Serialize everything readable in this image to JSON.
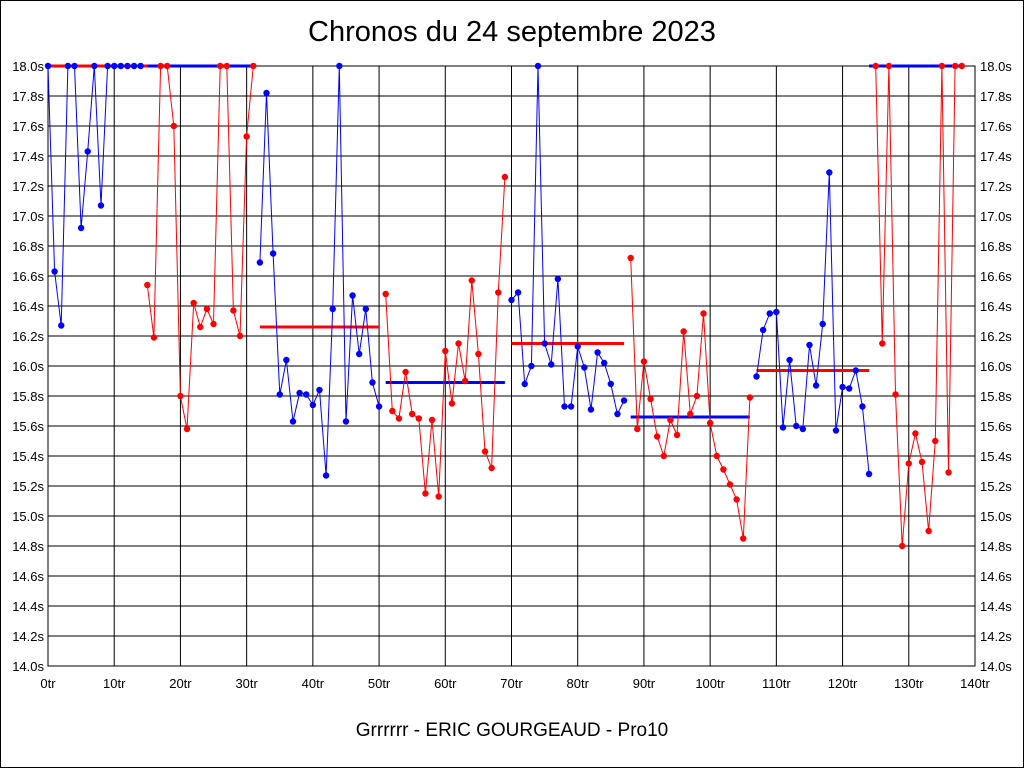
{
  "chart_data": {
    "type": "line",
    "title": "Chronos du 24 septembre 2023",
    "subtitle": "Grrrrrr - ERIC GOURGEAUD - Pro10",
    "xlabel": "",
    "ylabel": "",
    "xlim": [
      0,
      140
    ],
    "ylim": [
      14.0,
      18.0
    ],
    "grid": true,
    "x_tick_labels": [
      "0tr",
      "10tr",
      "20tr",
      "30tr",
      "40tr",
      "50tr",
      "60tr",
      "70tr",
      "80tr",
      "90tr",
      "100tr",
      "110tr",
      "120tr",
      "130tr",
      "140tr"
    ],
    "y_tick_labels": [
      "14.0s",
      "14.2s",
      "14.4s",
      "14.6s",
      "14.8s",
      "15.0s",
      "15.2s",
      "15.4s",
      "15.6s",
      "15.8s",
      "16.0s",
      "16.2s",
      "16.4s",
      "16.6s",
      "16.8s",
      "17.0s",
      "17.2s",
      "17.4s",
      "17.6s",
      "17.8s",
      "18.0s"
    ],
    "colors": {
      "blue": "#0000ff",
      "red": "#ff0000"
    },
    "series": [
      {
        "color": "blue",
        "x": [
          0,
          1,
          2,
          3,
          4,
          5,
          6,
          7,
          8,
          9,
          10,
          11,
          12,
          13,
          14
        ],
        "y": [
          18.0,
          16.63,
          16.27,
          18.0,
          18.0,
          16.92,
          17.43,
          18.0,
          17.07,
          18.0,
          18.0,
          18.0,
          18.0,
          18.0,
          18.0
        ],
        "mean": {
          "x": [
            15,
            31
          ],
          "y": 18.0
        }
      },
      {
        "color": "red",
        "x": [
          15,
          16,
          17,
          18,
          19,
          20,
          21,
          22,
          23,
          24,
          25,
          26,
          27,
          28,
          29,
          30,
          31
        ],
        "y": [
          16.54,
          16.19,
          18.0,
          18.0,
          17.6,
          15.8,
          15.58,
          16.42,
          16.26,
          16.38,
          16.28,
          18.0,
          18.0,
          16.37,
          16.2,
          17.53,
          18.0
        ],
        "mean": {
          "x": [
            0,
            15
          ],
          "y": 18.0
        }
      },
      {
        "color": "blue",
        "x": [
          32,
          33,
          34,
          35,
          36,
          37,
          38,
          39,
          40,
          41,
          42,
          43,
          44,
          45,
          46,
          47,
          48,
          49,
          50
        ],
        "y": [
          16.69,
          17.82,
          16.75,
          15.81,
          16.04,
          15.63,
          15.82,
          15.81,
          15.74,
          15.84,
          15.27,
          16.38,
          18.0,
          15.63,
          16.47,
          16.08,
          16.38,
          15.89,
          15.73
        ],
        "mean": {
          "x": [
            51,
            69
          ],
          "y": 15.89
        }
      },
      {
        "color": "red",
        "x": [
          51,
          52,
          53,
          54,
          55,
          56,
          57,
          58,
          59,
          60,
          61,
          62,
          63,
          64,
          65,
          66,
          67,
          68,
          69
        ],
        "y": [
          16.48,
          15.7,
          15.65,
          15.96,
          15.68,
          15.65,
          15.15,
          15.64,
          15.13,
          16.1,
          15.75,
          16.15,
          15.9,
          16.57,
          16.08,
          15.43,
          15.32,
          16.49,
          17.26
        ],
        "mean": {
          "x": [
            32,
            50
          ],
          "y": 16.26
        }
      },
      {
        "color": "blue",
        "x": [
          70,
          71,
          72,
          73,
          74,
          75,
          76,
          77,
          78,
          79,
          80,
          81,
          82,
          83,
          84,
          85,
          86,
          87
        ],
        "y": [
          16.44,
          16.49,
          15.88,
          16.0,
          18.0,
          16.15,
          16.01,
          16.58,
          15.73,
          15.73,
          16.13,
          15.99,
          15.71,
          16.09,
          16.02,
          15.88,
          15.68,
          15.77
        ],
        "mean": {
          "x": [
            88,
            106
          ],
          "y": 15.66
        }
      },
      {
        "color": "red",
        "x": [
          88,
          89,
          90,
          91,
          92,
          93,
          94,
          95,
          96,
          97,
          98,
          99,
          100,
          101,
          102,
          103,
          104,
          105,
          106
        ],
        "y": [
          16.72,
          15.58,
          16.03,
          15.78,
          15.53,
          15.4,
          15.64,
          15.54,
          16.23,
          15.68,
          15.8,
          16.35,
          15.62,
          15.4,
          15.31,
          15.21,
          15.11,
          14.85,
          15.79
        ],
        "mean": {
          "x": [
            70,
            87
          ],
          "y": 16.15
        }
      },
      {
        "color": "blue",
        "x": [
          107,
          108,
          109,
          110,
          111,
          112,
          113,
          114,
          115,
          116,
          117,
          118,
          119,
          120,
          121,
          122,
          123,
          124
        ],
        "y": [
          15.93,
          16.24,
          16.35,
          16.36,
          15.59,
          16.04,
          15.6,
          15.58,
          16.14,
          15.87,
          16.28,
          17.29,
          15.57,
          15.86,
          15.85,
          15.97,
          15.73,
          15.28
        ],
        "mean": {
          "x": [
            124,
            138
          ],
          "y": 18.0
        }
      },
      {
        "color": "red",
        "x": [
          125,
          126,
          127,
          128,
          129,
          130,
          131,
          132,
          133,
          134,
          135,
          136,
          137,
          138
        ],
        "y": [
          18.0,
          16.15,
          18.0,
          15.81,
          14.8,
          15.35,
          15.55,
          15.36,
          14.9,
          15.5,
          18.0,
          15.29,
          18.0,
          18.0
        ],
        "mean": {
          "x": [
            107,
            124
          ],
          "y": 15.97
        }
      }
    ]
  }
}
